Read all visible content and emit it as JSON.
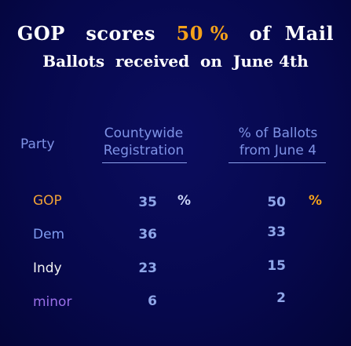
{
  "title": {
    "line1_pre": "GOP   scores   ",
    "line1_accent": "50 %",
    "line1_post": "   of  Mail",
    "line2": "Ballots  received  on  June 4th"
  },
  "chart_data": {
    "type": "table",
    "columns": {
      "party": "Party",
      "registration": [
        "Countywide",
        "Registration"
      ],
      "ballots": [
        "% of Ballots",
        "from June 4"
      ]
    },
    "pct_symbol": "%",
    "rows": [
      {
        "party": "GOP",
        "registration": "35",
        "ballots": "50",
        "color": "#f0a236"
      },
      {
        "party": "Dem",
        "registration": "36",
        "ballots": "33",
        "color": "#7f9cf0"
      },
      {
        "party": "Indy",
        "registration": "23",
        "ballots": "15",
        "color": "#f2f2f2"
      },
      {
        "party": "minor",
        "registration": "6",
        "ballots": "2",
        "color": "#9a6fe8"
      }
    ]
  },
  "colors": {
    "background": "#06084c",
    "header": "#7f93e6",
    "accent": "#f5a21a",
    "values": "#8fa6e8"
  }
}
